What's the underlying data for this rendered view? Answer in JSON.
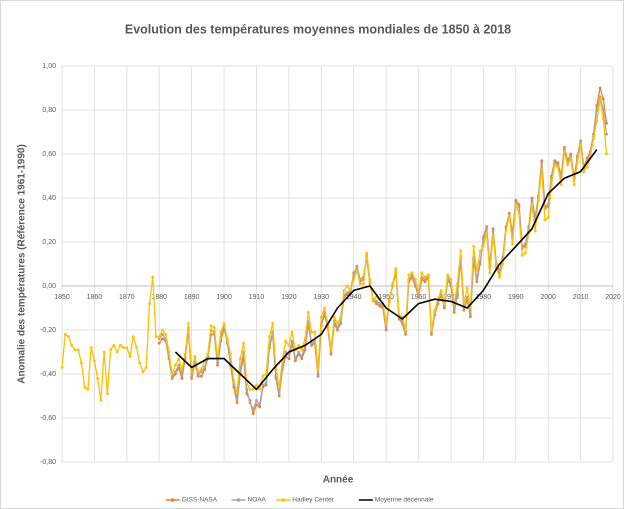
{
  "chart_data": {
    "type": "line",
    "title": "Evolution des températures moyennes mondiales de 1850 à 2018",
    "x_label": "Année",
    "y_label": "Anomalie des températures (Référence 1961-1990)",
    "xlim": [
      1850,
      2020
    ],
    "xticks": [
      1850,
      1860,
      1870,
      1880,
      1890,
      1900,
      1910,
      1920,
      1930,
      1940,
      1950,
      1960,
      1970,
      1980,
      1990,
      2000,
      2010,
      2020
    ],
    "ylim": [
      -0.8,
      1.0
    ],
    "yticks": [
      {
        "value": -0.8,
        "label": "-0,80"
      },
      {
        "value": -0.6,
        "label": "-0,60"
      },
      {
        "value": -0.4,
        "label": "-0,40"
      },
      {
        "value": -0.2,
        "label": "-0,20"
      },
      {
        "value": 0,
        "label": "0,00"
      },
      {
        "value": 0.2,
        "label": "0,20"
      },
      {
        "value": 0.4,
        "label": "0,40"
      },
      {
        "value": 0.6,
        "label": "0,60"
      },
      {
        "value": 0.8,
        "label": "0,80"
      },
      {
        "value": 1.0,
        "label": "1,00"
      }
    ],
    "grid": true,
    "legend": "bottom",
    "x": [
      1850,
      1851,
      1852,
      1853,
      1854,
      1855,
      1856,
      1857,
      1858,
      1859,
      1860,
      1861,
      1862,
      1863,
      1864,
      1865,
      1866,
      1867,
      1868,
      1869,
      1870,
      1871,
      1872,
      1873,
      1874,
      1875,
      1876,
      1877,
      1878,
      1879,
      1880,
      1881,
      1882,
      1883,
      1884,
      1885,
      1886,
      1887,
      1888,
      1889,
      1890,
      1891,
      1892,
      1893,
      1894,
      1895,
      1896,
      1897,
      1898,
      1899,
      1900,
      1901,
      1902,
      1903,
      1904,
      1905,
      1906,
      1907,
      1908,
      1909,
      1910,
      1911,
      1912,
      1913,
      1914,
      1915,
      1916,
      1917,
      1918,
      1919,
      1920,
      1921,
      1922,
      1923,
      1924,
      1925,
      1926,
      1927,
      1928,
      1929,
      1930,
      1931,
      1932,
      1933,
      1934,
      1935,
      1936,
      1937,
      1938,
      1939,
      1940,
      1941,
      1942,
      1943,
      1944,
      1945,
      1946,
      1947,
      1948,
      1949,
      1950,
      1951,
      1952,
      1953,
      1954,
      1955,
      1956,
      1957,
      1958,
      1959,
      1960,
      1961,
      1962,
      1963,
      1964,
      1965,
      1966,
      1967,
      1968,
      1969,
      1970,
      1971,
      1972,
      1973,
      1974,
      1975,
      1976,
      1977,
      1978,
      1979,
      1980,
      1981,
      1982,
      1983,
      1984,
      1985,
      1986,
      1987,
      1988,
      1989,
      1990,
      1991,
      1992,
      1993,
      1994,
      1995,
      1996,
      1997,
      1998,
      1999,
      2000,
      2001,
      2002,
      2003,
      2004,
      2005,
      2006,
      2007,
      2008,
      2009,
      2010,
      2011,
      2012,
      2013,
      2014,
      2015,
      2016,
      2017,
      2018
    ],
    "series": [
      {
        "name": "GISS-NASA",
        "color": "#ed7d31",
        "values": [
          null,
          null,
          null,
          null,
          null,
          null,
          null,
          null,
          null,
          null,
          null,
          null,
          null,
          null,
          null,
          null,
          null,
          null,
          null,
          null,
          null,
          null,
          null,
          null,
          null,
          null,
          null,
          null,
          null,
          null,
          -0.26,
          -0.24,
          -0.25,
          -0.33,
          -0.42,
          -0.4,
          -0.37,
          -0.42,
          -0.33,
          -0.2,
          -0.42,
          -0.35,
          -0.41,
          -0.41,
          -0.38,
          -0.33,
          -0.22,
          -0.22,
          -0.36,
          -0.25,
          -0.19,
          -0.25,
          -0.36,
          -0.46,
          -0.53,
          -0.4,
          -0.32,
          -0.49,
          -0.52,
          -0.58,
          -0.54,
          -0.55,
          -0.46,
          -0.45,
          -0.28,
          -0.22,
          -0.42,
          -0.5,
          -0.38,
          -0.32,
          -0.33,
          -0.26,
          -0.34,
          -0.31,
          -0.33,
          -0.29,
          -0.17,
          -0.27,
          -0.26,
          -0.41,
          -0.18,
          -0.13,
          -0.19,
          -0.31,
          -0.17,
          -0.2,
          -0.17,
          -0.05,
          -0.04,
          -0.03,
          0.06,
          0.08,
          0.02,
          0.03,
          0.13,
          0.01,
          -0.06,
          -0.08,
          -0.09,
          -0.1,
          -0.2,
          -0.06,
          0.0,
          0.06,
          -0.15,
          -0.17,
          -0.22,
          0.02,
          0.04,
          0.0,
          -0.05,
          0.03,
          0.02,
          0.04,
          -0.22,
          -0.13,
          -0.08,
          -0.04,
          -0.1,
          0.03,
          0.0,
          -0.12,
          -0.04,
          0.12,
          -0.11,
          -0.06,
          -0.14,
          0.12,
          0.02,
          0.1,
          0.22,
          0.27,
          0.09,
          0.26,
          0.1,
          0.07,
          0.13,
          0.27,
          0.33,
          0.24,
          0.39,
          0.37,
          0.18,
          0.19,
          0.27,
          0.4,
          0.31,
          0.41,
          0.57,
          0.36,
          0.37,
          0.5,
          0.57,
          0.56,
          0.5,
          0.63,
          0.57,
          0.6,
          0.49,
          0.59,
          0.66,
          0.54,
          0.58,
          0.61,
          0.69,
          0.82,
          0.9,
          0.85,
          0.74
        ]
      },
      {
        "name": "NOAA",
        "color": "#a5a5a5",
        "values": [
          null,
          null,
          null,
          null,
          null,
          null,
          null,
          null,
          null,
          null,
          null,
          null,
          null,
          null,
          null,
          null,
          null,
          null,
          null,
          null,
          null,
          null,
          null,
          null,
          null,
          null,
          null,
          null,
          null,
          null,
          -0.24,
          -0.22,
          -0.24,
          -0.32,
          -0.41,
          -0.39,
          -0.36,
          -0.4,
          -0.31,
          -0.19,
          -0.41,
          -0.34,
          -0.4,
          -0.39,
          -0.37,
          -0.32,
          -0.2,
          -0.21,
          -0.35,
          -0.23,
          -0.18,
          -0.26,
          -0.35,
          -0.45,
          -0.51,
          -0.38,
          -0.3,
          -0.47,
          -0.53,
          -0.56,
          -0.52,
          -0.54,
          -0.45,
          -0.44,
          -0.27,
          -0.21,
          -0.41,
          -0.49,
          -0.37,
          -0.3,
          -0.31,
          -0.25,
          -0.33,
          -0.3,
          -0.32,
          -0.27,
          -0.16,
          -0.26,
          -0.25,
          -0.4,
          -0.17,
          -0.12,
          -0.18,
          -0.3,
          -0.16,
          -0.19,
          -0.16,
          -0.04,
          -0.03,
          -0.02,
          0.05,
          0.09,
          0.03,
          0.04,
          0.14,
          0.02,
          -0.06,
          -0.07,
          -0.08,
          -0.09,
          -0.19,
          -0.07,
          0.0,
          0.07,
          -0.14,
          -0.16,
          -0.21,
          0.03,
          0.05,
          0.01,
          -0.04,
          0.04,
          0.03,
          0.05,
          -0.21,
          -0.12,
          -0.07,
          -0.03,
          -0.09,
          0.04,
          0.01,
          -0.11,
          -0.03,
          0.13,
          -0.1,
          -0.05,
          -0.13,
          0.13,
          0.03,
          0.11,
          0.21,
          0.26,
          0.08,
          0.25,
          0.09,
          0.06,
          0.12,
          0.26,
          0.32,
          0.23,
          0.38,
          0.36,
          0.17,
          0.18,
          0.26,
          0.39,
          0.3,
          0.4,
          0.56,
          0.35,
          0.36,
          0.49,
          0.56,
          0.55,
          0.49,
          0.62,
          0.56,
          0.59,
          0.48,
          0.58,
          0.65,
          0.53,
          0.57,
          0.6,
          0.68,
          0.8,
          0.86,
          0.8,
          0.69
        ]
      },
      {
        "name": "Hadley Center",
        "color": "#ffc000",
        "values": [
          -0.37,
          -0.22,
          -0.23,
          -0.27,
          -0.29,
          -0.29,
          -0.35,
          -0.46,
          -0.47,
          -0.28,
          -0.34,
          -0.42,
          -0.52,
          -0.3,
          -0.49,
          -0.29,
          -0.27,
          -0.3,
          -0.27,
          -0.28,
          -0.28,
          -0.32,
          -0.23,
          -0.28,
          -0.35,
          -0.39,
          -0.37,
          -0.08,
          0.04,
          -0.23,
          -0.23,
          -0.2,
          -0.22,
          -0.3,
          -0.4,
          -0.36,
          -0.33,
          -0.38,
          -0.31,
          -0.17,
          -0.39,
          -0.32,
          -0.39,
          -0.38,
          -0.34,
          -0.31,
          -0.18,
          -0.19,
          -0.33,
          -0.21,
          -0.17,
          -0.24,
          -0.31,
          -0.43,
          -0.48,
          -0.33,
          -0.26,
          -0.44,
          -0.47,
          -0.47,
          -0.45,
          -0.47,
          -0.41,
          -0.4,
          -0.23,
          -0.17,
          -0.37,
          -0.46,
          -0.34,
          -0.25,
          -0.27,
          -0.21,
          -0.29,
          -0.27,
          -0.29,
          -0.24,
          -0.12,
          -0.21,
          -0.21,
          -0.38,
          -0.14,
          -0.1,
          -0.17,
          -0.29,
          -0.14,
          -0.17,
          -0.14,
          -0.02,
          0.0,
          -0.02,
          0.03,
          0.07,
          0.01,
          0.01,
          0.15,
          0.03,
          -0.07,
          -0.05,
          -0.06,
          -0.08,
          -0.17,
          -0.07,
          0.01,
          0.08,
          -0.13,
          -0.14,
          -0.2,
          0.05,
          0.06,
          0.03,
          -0.03,
          0.06,
          0.04,
          0.05,
          -0.2,
          -0.11,
          -0.06,
          -0.02,
          -0.08,
          0.05,
          0.03,
          -0.08,
          0.01,
          0.16,
          -0.08,
          -0.01,
          -0.1,
          0.18,
          0.07,
          0.16,
          0.18,
          0.24,
          0.06,
          0.23,
          0.08,
          0.04,
          0.1,
          0.25,
          0.32,
          0.19,
          0.37,
          0.33,
          0.14,
          0.15,
          0.24,
          0.37,
          0.25,
          0.39,
          0.53,
          0.3,
          0.31,
          0.46,
          0.55,
          0.54,
          0.46,
          0.61,
          0.55,
          0.58,
          0.46,
          0.56,
          0.64,
          0.52,
          0.54,
          0.59,
          0.67,
          0.75,
          0.85,
          0.76,
          0.6
        ]
      },
      {
        "name": "Moyenne décennale",
        "color": "#000000",
        "x": [
          1885,
          1890,
          1895,
          1900,
          1905,
          1910,
          1915,
          1920,
          1925,
          1930,
          1935,
          1940,
          1945,
          1950,
          1955,
          1960,
          1965,
          1970,
          1975,
          1980,
          1985,
          1990,
          1995,
          2000,
          2005,
          2010,
          2015
        ],
        "values": [
          -0.3,
          -0.37,
          -0.33,
          -0.33,
          -0.4,
          -0.47,
          -0.38,
          -0.3,
          -0.27,
          -0.22,
          -0.1,
          -0.02,
          0.0,
          -0.1,
          -0.15,
          -0.08,
          -0.06,
          -0.07,
          -0.1,
          -0.02,
          0.1,
          0.18,
          0.26,
          0.42,
          0.49,
          0.52,
          0.62
        ]
      }
    ]
  }
}
